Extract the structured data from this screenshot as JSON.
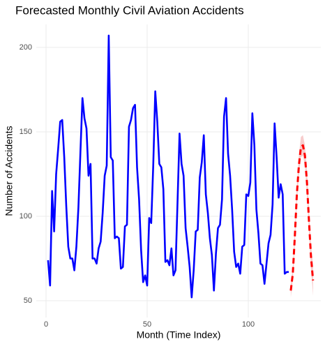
{
  "chart_data": {
    "type": "line",
    "title": "Forecasted Monthly Civil Aviation Accidents",
    "xlabel": "Month (Time Index)",
    "ylabel": "Number of Accidents",
    "xlim": [
      -4.83,
      135.86
    ],
    "ylim": [
      40.08,
      213.6
    ],
    "xticks": [
      0,
      50,
      100
    ],
    "yticks": [
      50,
      100,
      150,
      200
    ],
    "grid": true,
    "series": [
      {
        "color": "#0000ff",
        "linestyle": "solid",
        "x": [
          1,
          2,
          3,
          4,
          5,
          6,
          7,
          8,
          9,
          10,
          11,
          12,
          13,
          14,
          15,
          16,
          17,
          18,
          19,
          20,
          21,
          22,
          23,
          24,
          25,
          26,
          27,
          28,
          29,
          30,
          31,
          32,
          33,
          34,
          35,
          36,
          37,
          38,
          39,
          40,
          41,
          42,
          43,
          44,
          45,
          46,
          47,
          48,
          49,
          50,
          51,
          52,
          53,
          54,
          55,
          56,
          57,
          58,
          59,
          60,
          61,
          62,
          63,
          64,
          65,
          66,
          67,
          68,
          69,
          70,
          71,
          72,
          73,
          74,
          75,
          76,
          77,
          78,
          79,
          80,
          81,
          82,
          83,
          84,
          85,
          86,
          87,
          88,
          89,
          90,
          91,
          92,
          93,
          94,
          95,
          96,
          97,
          98,
          99,
          100,
          101,
          102,
          103,
          104,
          105,
          106,
          107,
          108,
          109,
          110,
          111,
          112,
          113,
          114,
          115,
          116,
          117,
          118,
          119,
          120
        ],
        "values": [
          74,
          59,
          115,
          91,
          125,
          140,
          156,
          157,
          135,
          106,
          82,
          75,
          75,
          68,
          82,
          105,
          138,
          170,
          158,
          152,
          124,
          131,
          75,
          75,
          72,
          81,
          85,
          102,
          124,
          130,
          207,
          135,
          133,
          87,
          88,
          87,
          69,
          70,
          94,
          95,
          153,
          157,
          164,
          166,
          129,
          110,
          80,
          61,
          65,
          59,
          99,
          96,
          130,
          174,
          156,
          131,
          129,
          116,
          73,
          74,
          71,
          81,
          65,
          68,
          108,
          149,
          131,
          124,
          93,
          82,
          70,
          52,
          68,
          91,
          92,
          123,
          132,
          148,
          113,
          102,
          87,
          77,
          56,
          78,
          93,
          95,
          110,
          159,
          170,
          137,
          124,
          104,
          79,
          70,
          72,
          66,
          82,
          83,
          113,
          112,
          120,
          161,
          142,
          104,
          90,
          72,
          71,
          60,
          72,
          84,
          89,
          107,
          155,
          135,
          111,
          119,
          113,
          66,
          67,
          67
        ]
      },
      {
        "color": "#ff0000",
        "linestyle": "dashed",
        "band_color": "#f4b6b6",
        "x": [
          121,
          122,
          123,
          124,
          125,
          126,
          127,
          128,
          129,
          130,
          131,
          132
        ],
        "values": [
          56,
          66,
          88,
          113,
          130,
          141,
          142,
          136,
          120,
          97,
          76,
          62
        ],
        "lower": [
          52,
          62,
          83,
          108,
          124,
          135,
          136,
          130,
          113,
          90,
          69,
          53
        ],
        "upper": [
          60,
          70,
          93,
          118,
          136,
          147,
          148,
          142,
          127,
          104,
          83,
          71
        ]
      }
    ]
  }
}
